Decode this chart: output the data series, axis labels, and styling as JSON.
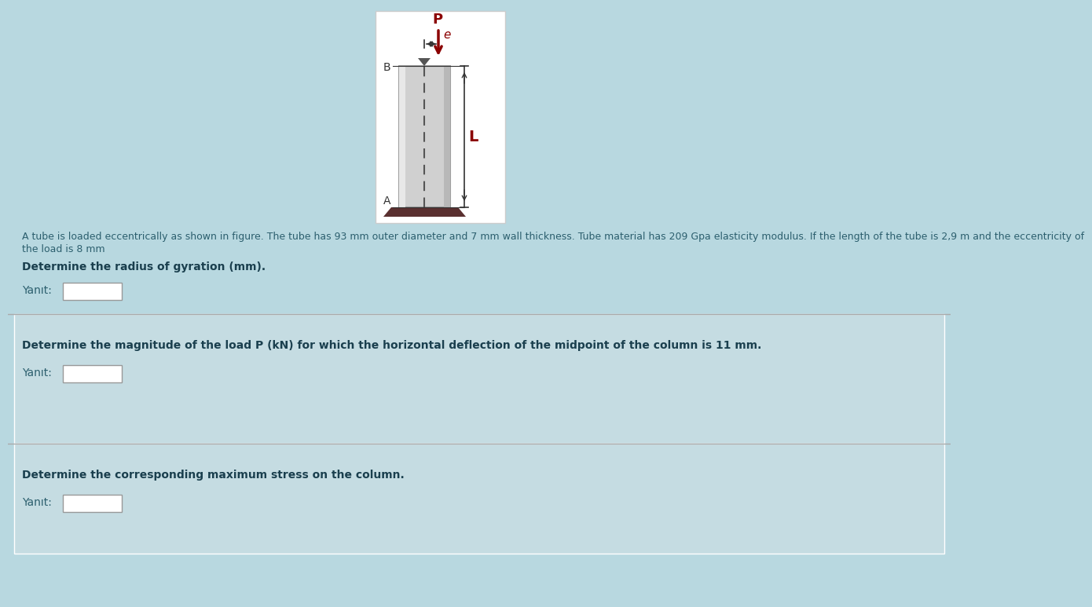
{
  "bg_color": "#b8d8e0",
  "figure_bg": "#b8d8e0",
  "panel_bg": "#ffffff",
  "section_bg": "#c5dce2",
  "title_text": "A tube is loaded eccentrically as shown in figure. The tube has 93 mm outer diameter and 7 mm wall thickness. Tube material has 209 Gpa elasticity modulus. If the length of the tube is 2,9 m and the eccentricity of\nthe load is 8 mm",
  "q1_bold": "Determine the radius of gyration (mm).",
  "q2_bold": "Determine the magnitude of the load P (kN) for which the horizontal deflection of the midpoint of the column is 11 mm.",
  "q3_bold": "Determine the corresponding maximum stress on the column.",
  "yanit_label": "Yanıt:",
  "diagram_bg": "#ffffff",
  "tube_color": "#d0d0d0",
  "tube_edge": "#a0a0a0",
  "dashed_color": "#555555",
  "arrow_color": "#8b0000",
  "base_color": "#5a3030",
  "label_P": "P",
  "label_e": "e",
  "label_L": "L",
  "label_B": "B",
  "label_A": "A"
}
